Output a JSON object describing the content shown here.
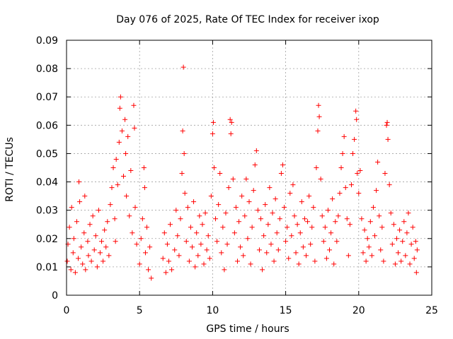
{
  "chart_data": {
    "type": "scatter",
    "title": "Day 076 of 2025, Rate Of TEC Index for receiver ixop",
    "xlabel": "GPS time / hours",
    "ylabel": "ROTI / TECUs",
    "xlim": [
      0,
      25
    ],
    "ylim": [
      0,
      0.09
    ],
    "xticks": [
      0,
      5,
      10,
      15,
      20,
      25
    ],
    "xtick_labels": [
      "0",
      "5",
      "10",
      "15",
      "20",
      "25"
    ],
    "yticks": [
      0,
      0.01,
      0.02,
      0.03,
      0.04,
      0.05,
      0.06,
      0.07,
      0.08,
      0.09
    ],
    "ytick_labels": [
      "0",
      "0.01",
      "0.02",
      "0.03",
      "0.04",
      "0.05",
      "0.06",
      "0.07",
      "0.08",
      "0.09"
    ],
    "grid": true,
    "marker": "+",
    "marker_color": "#ff0000",
    "series": [
      {
        "name": "ROTI",
        "points": [
          [
            0.05,
            0.012
          ],
          [
            0.1,
            0.018
          ],
          [
            0.2,
            0.024
          ],
          [
            0.3,
            0.009
          ],
          [
            0.35,
            0.031
          ],
          [
            0.45,
            0.015
          ],
          [
            0.5,
            0.02
          ],
          [
            0.6,
            0.008
          ],
          [
            0.7,
            0.026
          ],
          [
            0.8,
            0.013
          ],
          [
            0.85,
            0.04
          ],
          [
            0.9,
            0.033
          ],
          [
            1.0,
            0.017
          ],
          [
            1.1,
            0.011
          ],
          [
            1.2,
            0.022
          ],
          [
            1.25,
            0.035
          ],
          [
            1.3,
            0.009
          ],
          [
            1.45,
            0.019
          ],
          [
            1.5,
            0.014
          ],
          [
            1.6,
            0.025
          ],
          [
            1.7,
            0.012
          ],
          [
            1.8,
            0.028
          ],
          [
            1.9,
            0.016
          ],
          [
            2.0,
            0.021
          ],
          [
            2.1,
            0.01
          ],
          [
            2.2,
            0.03
          ],
          [
            2.3,
            0.015
          ],
          [
            2.4,
            0.019
          ],
          [
            2.5,
            0.012
          ],
          [
            2.6,
            0.023
          ],
          [
            2.7,
            0.017
          ],
          [
            2.8,
            0.026
          ],
          [
            2.9,
            0.014
          ],
          [
            3.0,
            0.032
          ],
          [
            3.1,
            0.038
          ],
          [
            3.2,
            0.045
          ],
          [
            3.3,
            0.027
          ],
          [
            3.35,
            0.019
          ],
          [
            3.4,
            0.048
          ],
          [
            3.5,
            0.039
          ],
          [
            3.6,
            0.054
          ],
          [
            3.65,
            0.066
          ],
          [
            3.7,
            0.07
          ],
          [
            3.8,
            0.058
          ],
          [
            3.9,
            0.042
          ],
          [
            4.0,
            0.062
          ],
          [
            4.05,
            0.05
          ],
          [
            4.1,
            0.035
          ],
          [
            4.2,
            0.056
          ],
          [
            4.3,
            0.028
          ],
          [
            4.4,
            0.044
          ],
          [
            4.5,
            0.022
          ],
          [
            4.6,
            0.067
          ],
          [
            4.65,
            0.059
          ],
          [
            4.7,
            0.031
          ],
          [
            4.8,
            0.018
          ],
          [
            5.0,
            0.011
          ],
          [
            5.1,
            0.02
          ],
          [
            5.2,
            0.027
          ],
          [
            5.3,
            0.045
          ],
          [
            5.35,
            0.038
          ],
          [
            5.4,
            0.015
          ],
          [
            5.5,
            0.024
          ],
          [
            5.6,
            0.009
          ],
          [
            5.7,
            0.017
          ],
          [
            5.8,
            0.006
          ],
          [
            6.6,
            0.013
          ],
          [
            6.7,
            0.022
          ],
          [
            6.8,
            0.008
          ],
          [
            6.9,
            0.018
          ],
          [
            7.0,
            0.012
          ],
          [
            7.1,
            0.025
          ],
          [
            7.2,
            0.009
          ],
          [
            7.4,
            0.016
          ],
          [
            7.5,
            0.03
          ],
          [
            7.6,
            0.021
          ],
          [
            7.7,
            0.014
          ],
          [
            7.8,
            0.027
          ],
          [
            7.9,
            0.043
          ],
          [
            7.95,
            0.058
          ],
          [
            8.0,
            0.0805
          ],
          [
            8.05,
            0.05
          ],
          [
            8.1,
            0.036
          ],
          [
            8.2,
            0.019
          ],
          [
            8.3,
            0.031
          ],
          [
            8.4,
            0.012
          ],
          [
            8.5,
            0.024
          ],
          [
            8.6,
            0.017
          ],
          [
            8.7,
            0.033
          ],
          [
            8.8,
            0.01
          ],
          [
            8.9,
            0.022
          ],
          [
            9.0,
            0.014
          ],
          [
            9.1,
            0.028
          ],
          [
            9.2,
            0.018
          ],
          [
            9.3,
            0.025
          ],
          [
            9.4,
            0.011
          ],
          [
            9.5,
            0.029
          ],
          [
            9.6,
            0.016
          ],
          [
            9.7,
            0.021
          ],
          [
            9.8,
            0.013
          ],
          [
            9.9,
            0.035
          ],
          [
            10.0,
            0.057
          ],
          [
            10.05,
            0.061
          ],
          [
            10.1,
            0.045
          ],
          [
            10.2,
            0.027
          ],
          [
            10.3,
            0.019
          ],
          [
            10.4,
            0.032
          ],
          [
            10.5,
            0.043
          ],
          [
            10.6,
            0.015
          ],
          [
            10.7,
            0.024
          ],
          [
            10.8,
            0.009
          ],
          [
            10.9,
            0.029
          ],
          [
            11.0,
            0.018
          ],
          [
            11.1,
            0.038
          ],
          [
            11.2,
            0.062
          ],
          [
            11.25,
            0.057
          ],
          [
            11.3,
            0.061
          ],
          [
            11.4,
            0.041
          ],
          [
            11.5,
            0.022
          ],
          [
            11.6,
            0.031
          ],
          [
            11.7,
            0.012
          ],
          [
            11.8,
            0.026
          ],
          [
            11.9,
            0.017
          ],
          [
            12.0,
            0.035
          ],
          [
            12.1,
            0.014
          ],
          [
            12.2,
            0.028
          ],
          [
            12.3,
            0.041
          ],
          [
            12.4,
            0.02
          ],
          [
            12.5,
            0.033
          ],
          [
            12.6,
            0.011
          ],
          [
            12.7,
            0.024
          ],
          [
            12.8,
            0.037
          ],
          [
            12.9,
            0.046
          ],
          [
            13.0,
            0.051
          ],
          [
            13.1,
            0.03
          ],
          [
            13.2,
            0.016
          ],
          [
            13.3,
            0.027
          ],
          [
            13.4,
            0.009
          ],
          [
            13.5,
            0.021
          ],
          [
            13.6,
            0.032
          ],
          [
            13.7,
            0.015
          ],
          [
            13.8,
            0.025
          ],
          [
            13.9,
            0.038
          ],
          [
            14.0,
            0.018
          ],
          [
            14.1,
            0.029
          ],
          [
            14.2,
            0.012
          ],
          [
            14.3,
            0.034
          ],
          [
            14.4,
            0.022
          ],
          [
            14.5,
            0.016
          ],
          [
            14.6,
            0.027
          ],
          [
            14.7,
            0.043
          ],
          [
            14.8,
            0.046
          ],
          [
            14.9,
            0.031
          ],
          [
            15.0,
            0.019
          ],
          [
            15.1,
            0.024
          ],
          [
            15.2,
            0.013
          ],
          [
            15.3,
            0.036
          ],
          [
            15.4,
            0.021
          ],
          [
            15.5,
            0.039
          ],
          [
            15.6,
            0.028
          ],
          [
            15.7,
            0.015
          ],
          [
            15.8,
            0.025
          ],
          [
            15.9,
            0.011
          ],
          [
            16.0,
            0.022
          ],
          [
            16.1,
            0.033
          ],
          [
            16.2,
            0.017
          ],
          [
            16.3,
            0.027
          ],
          [
            16.4,
            0.014
          ],
          [
            16.5,
            0.026
          ],
          [
            16.6,
            0.035
          ],
          [
            16.7,
            0.018
          ],
          [
            16.8,
            0.024
          ],
          [
            16.9,
            0.031
          ],
          [
            17.0,
            0.012
          ],
          [
            17.1,
            0.045
          ],
          [
            17.2,
            0.058
          ],
          [
            17.25,
            0.067
          ],
          [
            17.3,
            0.063
          ],
          [
            17.4,
            0.041
          ],
          [
            17.5,
            0.028
          ],
          [
            17.6,
            0.019
          ],
          [
            17.7,
            0.024
          ],
          [
            17.8,
            0.013
          ],
          [
            17.9,
            0.03
          ],
          [
            18.0,
            0.016
          ],
          [
            18.1,
            0.022
          ],
          [
            18.2,
            0.034
          ],
          [
            18.3,
            0.011
          ],
          [
            18.4,
            0.026
          ],
          [
            18.5,
            0.019
          ],
          [
            18.6,
            0.028
          ],
          [
            18.7,
            0.036
          ],
          [
            18.8,
            0.045
          ],
          [
            18.9,
            0.05
          ],
          [
            19.0,
            0.056
          ],
          [
            19.1,
            0.038
          ],
          [
            19.2,
            0.027
          ],
          [
            19.3,
            0.014
          ],
          [
            19.4,
            0.025
          ],
          [
            19.5,
            0.039
          ],
          [
            19.6,
            0.05
          ],
          [
            19.7,
            0.055
          ],
          [
            19.8,
            0.065
          ],
          [
            19.85,
            0.062
          ],
          [
            19.9,
            0.043
          ],
          [
            20.0,
            0.036
          ],
          [
            20.1,
            0.044
          ],
          [
            20.2,
            0.027
          ],
          [
            20.3,
            0.015
          ],
          [
            20.4,
            0.023
          ],
          [
            20.5,
            0.012
          ],
          [
            20.6,
            0.02
          ],
          [
            20.7,
            0.017
          ],
          [
            20.8,
            0.026
          ],
          [
            20.9,
            0.014
          ],
          [
            21.0,
            0.031
          ],
          [
            21.1,
            0.021
          ],
          [
            21.2,
            0.037
          ],
          [
            21.3,
            0.047
          ],
          [
            21.4,
            0.028
          ],
          [
            21.5,
            0.016
          ],
          [
            21.6,
            0.024
          ],
          [
            21.7,
            0.012
          ],
          [
            21.8,
            0.043
          ],
          [
            21.9,
            0.06
          ],
          [
            21.95,
            0.061
          ],
          [
            22.0,
            0.055
          ],
          [
            22.1,
            0.039
          ],
          [
            22.2,
            0.029
          ],
          [
            22.3,
            0.018
          ],
          [
            22.4,
            0.025
          ],
          [
            22.5,
            0.011
          ],
          [
            22.6,
            0.02
          ],
          [
            22.7,
            0.015
          ],
          [
            22.8,
            0.023
          ],
          [
            22.9,
            0.012
          ],
          [
            23.0,
            0.019
          ],
          [
            23.1,
            0.026
          ],
          [
            23.2,
            0.014
          ],
          [
            23.3,
            0.022
          ],
          [
            23.4,
            0.029
          ],
          [
            23.5,
            0.011
          ],
          [
            23.6,
            0.018
          ],
          [
            23.7,
            0.024
          ],
          [
            23.8,
            0.013
          ],
          [
            23.9,
            0.019
          ],
          [
            23.95,
            0.008
          ],
          [
            24.0,
            0.016
          ]
        ]
      }
    ]
  }
}
